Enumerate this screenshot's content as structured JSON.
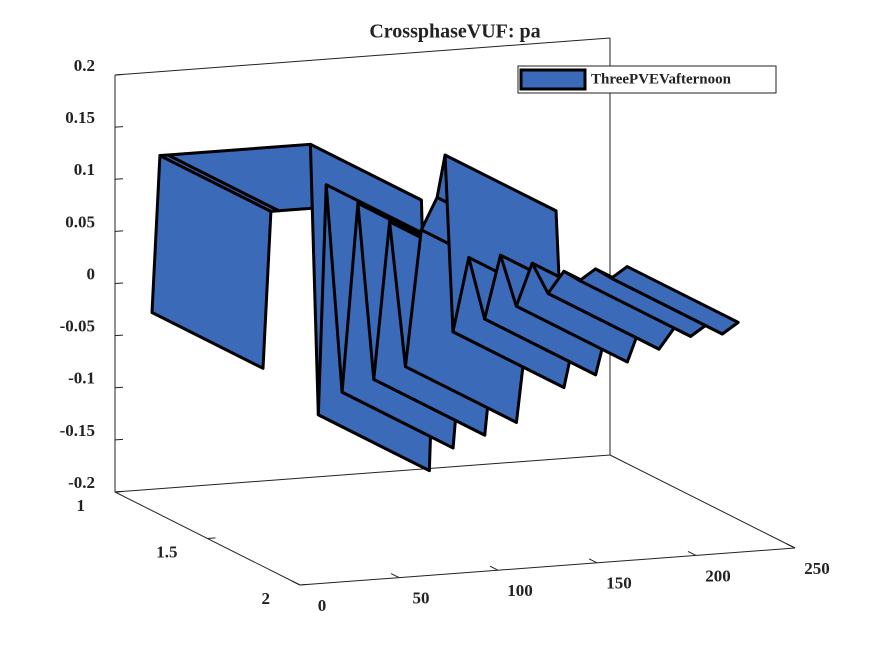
{
  "chart_data": {
    "type": "ribbon3d",
    "title": "CrossphaseVUF: pa",
    "x": [
      0,
      4,
      8,
      80,
      84,
      88,
      96,
      104,
      112,
      120,
      128,
      136,
      144,
      148,
      152,
      160,
      168,
      176,
      184,
      192,
      200,
      208,
      216,
      224,
      232,
      240
    ],
    "series": [
      {
        "name": "ThreePVEVafternoon",
        "color": "#3a6ab8",
        "values": [
          -0.01,
          0.14,
          0.14,
          0.14,
          -0.12,
          0.1,
          -0.1,
          0.08,
          -0.09,
          0.06,
          -0.08,
          0.05,
          0.08,
          0.12,
          -0.05,
          0.02,
          -0.04,
          0.02,
          -0.03,
          0.01,
          -0.02,
          0,
          -0.01,
          0,
          -0.01,
          0
        ]
      }
    ],
    "xlim": [
      0,
      250
    ],
    "xticks": [
      0,
      50,
      100,
      150,
      200,
      250
    ],
    "ylim": [
      1,
      2
    ],
    "yticks": [
      1,
      1.5,
      2
    ],
    "zlim": [
      -0.2,
      0.2
    ],
    "zticks": [
      -0.2,
      -0.15,
      -0.1,
      -0.05,
      0,
      0.05,
      0.1,
      0.15,
      0.2
    ],
    "legend": "top-right"
  }
}
